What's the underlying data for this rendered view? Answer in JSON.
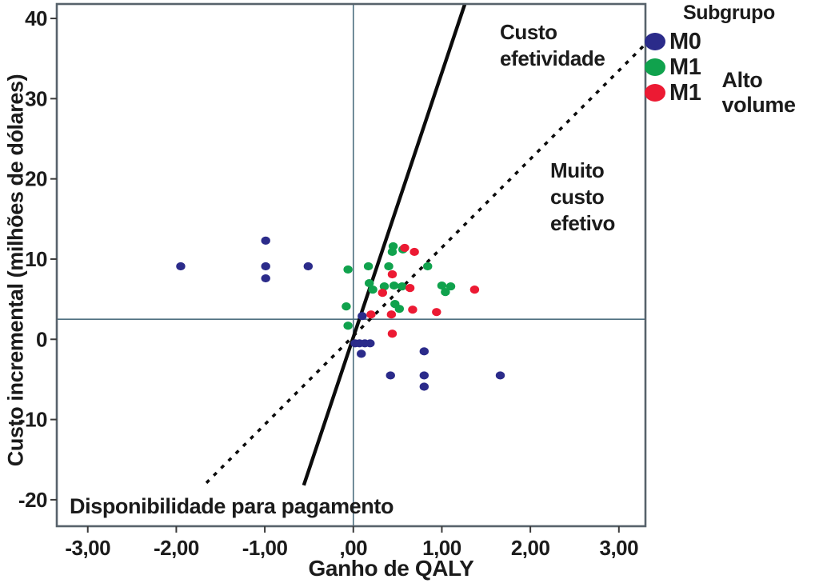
{
  "chart_data": {
    "type": "scatter",
    "xlabel": "Ganho de QALY",
    "ylabel": "Custo incremental (milhões de dólares)",
    "xlim": [
      -3.35,
      3.3
    ],
    "ylim": [
      -23.3,
      41.8
    ],
    "grid": false,
    "x_ticks": [
      -3,
      -2,
      -1,
      0,
      1,
      2,
      3
    ],
    "x_tick_labels": [
      "-3,00",
      "-2,00",
      "-1,00",
      ",00",
      "1,00",
      "2,00",
      "3,00"
    ],
    "y_ticks": [
      40,
      30,
      20,
      10,
      0,
      -10,
      -20
    ],
    "y_tick_labels": [
      "40",
      "30",
      "20",
      "10",
      "0",
      "-10",
      "-20"
    ],
    "legend": {
      "title": "Subgrupo",
      "position": "top-right-outside",
      "items": [
        {
          "label": "M0",
          "note": "",
          "color": "#2b2b8a"
        },
        {
          "label": "M1",
          "note": "",
          "color": "#10a24d"
        },
        {
          "label": "M1",
          "note": "Alto volume",
          "color": "#ec1a33"
        }
      ]
    },
    "series": [
      {
        "name": "M0",
        "color": "#2b2b8a",
        "points": [
          [
            -1.95,
            9.1
          ],
          [
            -0.99,
            12.3
          ],
          [
            -0.99,
            9.1
          ],
          [
            -0.99,
            7.6
          ],
          [
            -0.51,
            9.1
          ],
          [
            0.1,
            2.9
          ],
          [
            0.02,
            -0.5
          ],
          [
            0.07,
            -0.5
          ],
          [
            0.13,
            -0.5
          ],
          [
            0.19,
            -0.5
          ],
          [
            0.09,
            -1.8
          ],
          [
            0.8,
            -1.5
          ],
          [
            0.42,
            -4.5
          ],
          [
            0.8,
            -4.5
          ],
          [
            0.8,
            -5.9
          ],
          [
            1.66,
            -4.5
          ]
        ]
      },
      {
        "name": "M1",
        "color": "#10a24d",
        "points": [
          [
            -0.06,
            8.7
          ],
          [
            0.17,
            9.1
          ],
          [
            0.4,
            9.1
          ],
          [
            0.84,
            9.1
          ],
          [
            0.45,
            11.6
          ],
          [
            0.56,
            11.2
          ],
          [
            0.44,
            10.9
          ],
          [
            0.18,
            7.0
          ],
          [
            0.22,
            6.2
          ],
          [
            0.35,
            6.6
          ],
          [
            0.46,
            6.7
          ],
          [
            0.55,
            6.6
          ],
          [
            1.0,
            6.7
          ],
          [
            1.1,
            6.6
          ],
          [
            1.04,
            5.9
          ],
          [
            0.47,
            4.4
          ],
          [
            0.52,
            3.8
          ],
          [
            -0.08,
            4.1
          ],
          [
            -0.06,
            1.7
          ]
        ]
      },
      {
        "name": "M1 Alto volume",
        "color": "#ec1a33",
        "points": [
          [
            0.69,
            10.9
          ],
          [
            0.58,
            11.4
          ],
          [
            0.44,
            8.1
          ],
          [
            0.33,
            5.8
          ],
          [
            0.64,
            6.4
          ],
          [
            1.37,
            6.2
          ],
          [
            0.67,
            3.7
          ],
          [
            0.94,
            3.4
          ],
          [
            0.43,
            3.1
          ],
          [
            0.2,
            3.1
          ],
          [
            0.44,
            0.7
          ]
        ]
      }
    ],
    "reference_lines": {
      "vertical_x": 0,
      "horizontal_y": 2.5
    },
    "boundary_lines": [
      {
        "name": "custo-efetividade-line",
        "style": "solid",
        "from": [
          -0.56,
          -18.2
        ],
        "to": [
          1.26,
          41.8
        ]
      },
      {
        "name": "muito-custo-efetivo-line",
        "style": "dashed",
        "from": [
          -1.66,
          -17.9
        ],
        "to": [
          3.29,
          36.7
        ]
      }
    ],
    "annotations": {
      "cost_effectiveness": {
        "line1": "Custo",
        "line2": "efetividade"
      },
      "very_cost_effective": {
        "line1": "Muito",
        "line2": "custo",
        "line3": "efetivo"
      },
      "willingness_to_pay": {
        "text": "Disponibilidade para pagamento"
      }
    }
  }
}
